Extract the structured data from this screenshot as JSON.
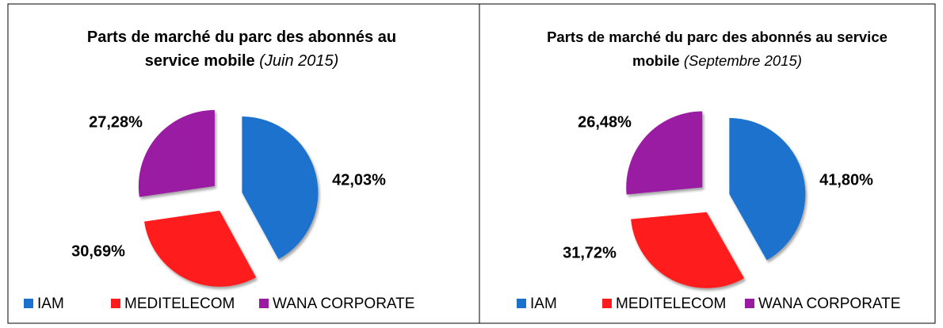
{
  "chart_data": [
    {
      "type": "pie",
      "title": "Parts de marché du parc des abonnés au service mobile",
      "subtitle": "(Juin 2015)",
      "categories": [
        "IAM",
        "MEDITELECOM",
        "WANA CORPORATE"
      ],
      "values": [
        42.03,
        30.69,
        27.28
      ],
      "value_labels": [
        "42,03%",
        "30,69%",
        "27,28%"
      ],
      "colors": [
        "#1a72cc",
        "#ff1c1c",
        "#9a1aa2"
      ]
    },
    {
      "type": "pie",
      "title": "Parts de marché du parc des abonnés au service mobile",
      "subtitle": "(Septembre 2015)",
      "categories": [
        "IAM",
        "MEDITELECOM",
        "WANA CORPORATE"
      ],
      "values": [
        41.8,
        31.72,
        26.48
      ],
      "value_labels": [
        "41,80%",
        "31,72%",
        "26,48%"
      ],
      "colors": [
        "#1a72cc",
        "#ff1c1c",
        "#9a1aa2"
      ]
    }
  ]
}
